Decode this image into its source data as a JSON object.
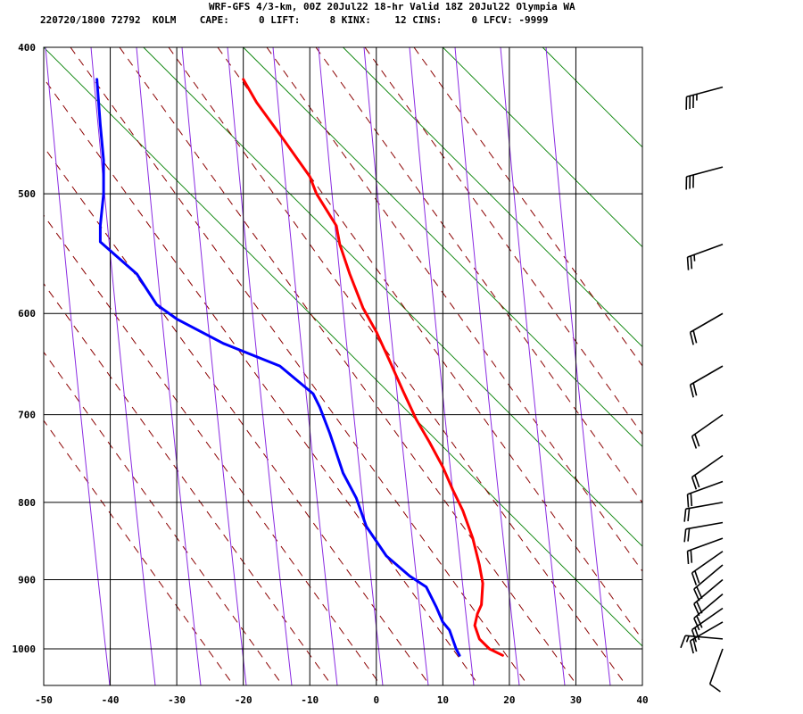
{
  "title": {
    "line1": "WRF-GFS 4/3-km, 00Z 20Jul22 18-hr Valid 18Z 20Jul22 Olympia WA",
    "line2": "220720/1800 72792  KOLM    CAPE:     0 LIFT:     8 KINX:    12 CINS:     0 LFCV: -9999"
  },
  "colors": {
    "temperature": "#ff0000",
    "dewpoint": "#0000ff",
    "dry_adiabat": "#8b0000",
    "moist_adiabat": "#8a2be2",
    "mixing_ratio": "#008000",
    "grid": "#000000"
  },
  "chart_data": {
    "type": "line",
    "title": "WRF-GFS 4/3-km, 00Z 20Jul22 18-hr Valid 18Z 20Jul22 Olympia WA",
    "xlabel": "",
    "ylabel": "",
    "xlim": [
      -50,
      40
    ],
    "ylim": [
      1040,
      400
    ],
    "y_scale": "log",
    "grid": true,
    "x_ticks": [
      "-50",
      "-40",
      "-30",
      "-20",
      "-10",
      "0",
      "10",
      "20",
      "30",
      "40"
    ],
    "y_ticks": [
      "400",
      "500",
      "600",
      "700",
      "800",
      "900",
      "1000"
    ],
    "series": [
      {
        "key": "temperature",
        "points": [
          [
            -20,
            420
          ],
          [
            -18,
            435
          ],
          [
            -14,
            460
          ],
          [
            -10,
            487
          ],
          [
            -9,
            500
          ],
          [
            -6,
            525
          ],
          [
            -5.5,
            540
          ],
          [
            -4,
            565
          ],
          [
            -2,
            595
          ],
          [
            0,
            617
          ],
          [
            2,
            645
          ],
          [
            4,
            675
          ],
          [
            6,
            705
          ],
          [
            8,
            730
          ],
          [
            10,
            758
          ],
          [
            11.5,
            785
          ],
          [
            13,
            810
          ],
          [
            14.5,
            845
          ],
          [
            15.5,
            880
          ],
          [
            16,
            905
          ],
          [
            15.8,
            935
          ],
          [
            15.2,
            948
          ],
          [
            14.8,
            965
          ],
          [
            15.5,
            985
          ],
          [
            17,
            1000
          ],
          [
            19,
            1010
          ]
        ]
      },
      {
        "key": "dewpoint",
        "points": [
          [
            -42,
            420
          ],
          [
            -41.5,
            450
          ],
          [
            -41,
            475
          ],
          [
            -41,
            500
          ],
          [
            -41.5,
            525
          ],
          [
            -41.5,
            538
          ],
          [
            -36,
            565
          ],
          [
            -33,
            592
          ],
          [
            -30,
            605
          ],
          [
            -23,
            628
          ],
          [
            -14.5,
            650
          ],
          [
            -9.5,
            678
          ],
          [
            -8.5,
            692
          ],
          [
            -7,
            720
          ],
          [
            -5,
            765
          ],
          [
            -3,
            795
          ],
          [
            -1.5,
            830
          ],
          [
            1.5,
            868
          ],
          [
            5,
            895
          ],
          [
            7.5,
            910
          ],
          [
            9,
            938
          ],
          [
            10,
            960
          ],
          [
            11,
            972
          ],
          [
            12,
            1000
          ],
          [
            12.5,
            1010
          ]
        ]
      }
    ],
    "wind_barbs": [
      {
        "p": 425,
        "dir": 255,
        "speed": 35
      },
      {
        "p": 480,
        "dir": 255,
        "speed": 30
      },
      {
        "p": 540,
        "dir": 250,
        "speed": 25
      },
      {
        "p": 600,
        "dir": 240,
        "speed": 20
      },
      {
        "p": 650,
        "dir": 240,
        "speed": 20
      },
      {
        "p": 700,
        "dir": 235,
        "speed": 20
      },
      {
        "p": 745,
        "dir": 235,
        "speed": 20
      },
      {
        "p": 775,
        "dir": 250,
        "speed": 20
      },
      {
        "p": 800,
        "dir": 260,
        "speed": 20
      },
      {
        "p": 825,
        "dir": 260,
        "speed": 20
      },
      {
        "p": 845,
        "dir": 250,
        "speed": 20
      },
      {
        "p": 862,
        "dir": 235,
        "speed": 20
      },
      {
        "p": 880,
        "dir": 230,
        "speed": 20
      },
      {
        "p": 900,
        "dir": 230,
        "speed": 20
      },
      {
        "p": 920,
        "dir": 230,
        "speed": 20
      },
      {
        "p": 940,
        "dir": 235,
        "speed": 20
      },
      {
        "p": 960,
        "dir": 240,
        "speed": 20
      },
      {
        "p": 985,
        "dir": 275,
        "speed": 15
      },
      {
        "p": 1000,
        "dir": 200,
        "speed": 10
      }
    ]
  }
}
